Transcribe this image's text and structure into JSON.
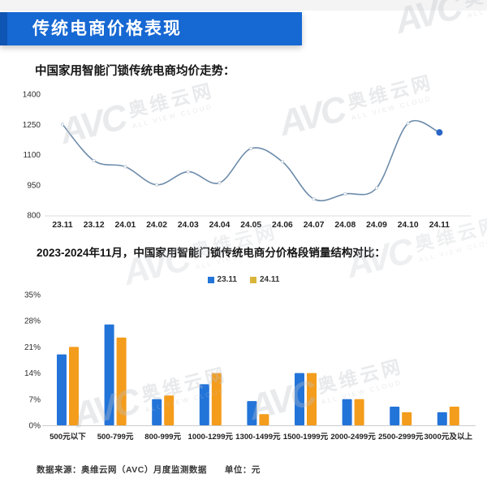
{
  "banner": {
    "title": "传统电商价格表现"
  },
  "watermark": {
    "brand": "AVC",
    "name": "奥维云网",
    "slogan": "ALL VIEW CLOUD"
  },
  "colors": {
    "banner_blue": "#1668d3",
    "banner_edge_blue": "#0f55b4",
    "line_color": "#6e8cab",
    "end_dot_color": "#2b66c6",
    "bar_blue": "#2374d9",
    "bar_orange": "#f49c1b",
    "legend_gold": "#d9b53a"
  },
  "chart_data": [
    {
      "type": "line",
      "title": "中国家用智能门锁传统电商均价走势：",
      "x": [
        "23.11",
        "23.12",
        "24.01",
        "24.02",
        "24.03",
        "24.04",
        "24.05",
        "24.06",
        "24.07",
        "24.08",
        "24.09",
        "24.10",
        "24.11"
      ],
      "values": [
        1250,
        1070,
        1040,
        950,
        1015,
        960,
        1130,
        1065,
        880,
        905,
        935,
        1255,
        1210
      ],
      "ylabel": "",
      "xlabel": "",
      "ylim": [
        800,
        1400
      ],
      "yticks": [
        800,
        950,
        1100,
        1250,
        1400
      ],
      "grid": false,
      "line_color": "#6e8cab",
      "end_dot_color": "#2b66c6"
    },
    {
      "type": "bar",
      "title": "2023-2024年11月，中国家用智能门锁传统电商分价格段销量结构对比：",
      "categories": [
        "500元以下",
        "500-799元",
        "800-999元",
        "1000-1299元",
        "1300-1499元",
        "1500-1999元",
        "2000-2499元",
        "2500-2999元",
        "3000元及以上"
      ],
      "series": [
        {
          "name": "23.11",
          "color": "#2374d9",
          "legend_color": "#2374d9",
          "values": [
            19,
            27,
            7,
            11,
            6.5,
            14,
            7,
            5,
            3.5
          ]
        },
        {
          "name": "24.11",
          "color": "#f49c1b",
          "legend_color": "#d9b53a",
          "values": [
            21,
            23.5,
            8,
            14,
            3,
            14,
            7,
            3.5,
            5
          ]
        }
      ],
      "unit": "%",
      "ylim": [
        0,
        35
      ],
      "yticks": [
        0,
        7,
        14,
        21,
        28,
        35
      ],
      "grid": false,
      "legend_position": "top"
    }
  ],
  "footer": {
    "source": "数据来源：奥维云网（AVC）月度监测数据",
    "unit": "单位：元"
  }
}
